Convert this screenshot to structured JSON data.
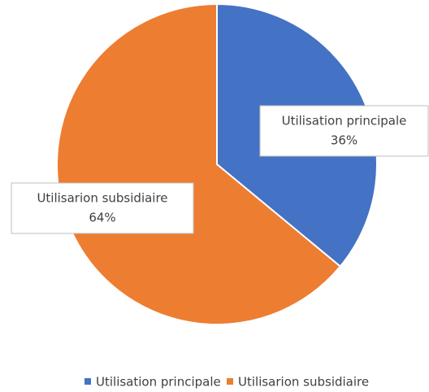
{
  "chart_data": {
    "type": "pie",
    "categories": [
      "Utilisation principale",
      "Utilisarion subsidiaire"
    ],
    "values": [
      36,
      64
    ],
    "value_labels": [
      "36%",
      "64%"
    ],
    "colors": [
      "#4472c4",
      "#ed7d31"
    ],
    "legend": "bottom"
  }
}
